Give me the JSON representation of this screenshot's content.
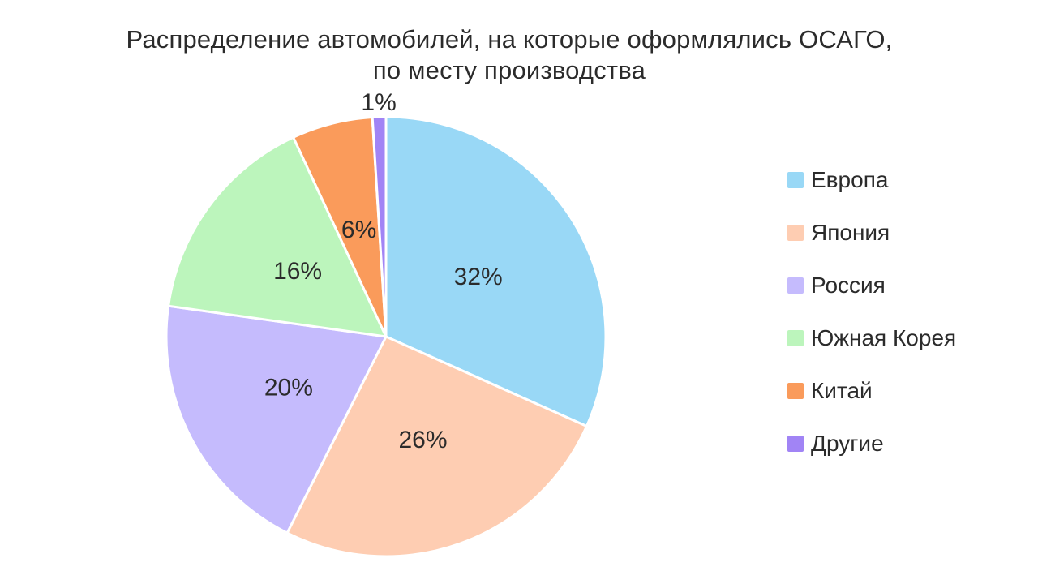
{
  "title": {
    "line1": "Распределение автомобилей, на которые оформлялись ОСАГО,",
    "line2": "по месту производства"
  },
  "chart_data": {
    "type": "pie",
    "title": "Распределение автомобилей, на которые оформлялись ОСАГО, по месту производства",
    "legend_position": "right",
    "slices": [
      {
        "id": "europa",
        "label": "Европа",
        "value": 32,
        "pct_label": "32%",
        "color": "#99d8f6",
        "label_position": "inside"
      },
      {
        "id": "yaponiya",
        "label": "Япония",
        "value": 26,
        "pct_label": "26%",
        "color": "#fecdb2",
        "label_position": "inside"
      },
      {
        "id": "rossiya",
        "label": "Россия",
        "value": 20,
        "pct_label": "20%",
        "color": "#c5bbfd",
        "label_position": "inside"
      },
      {
        "id": "yuzhnaya-koreya",
        "label": "Южная Корея",
        "value": 16,
        "pct_label": "16%",
        "color": "#bcf5bc",
        "label_position": "inside"
      },
      {
        "id": "kitay",
        "label": "Китай",
        "value": 6,
        "pct_label": "6%",
        "color": "#fa9b5b",
        "label_position": "inside"
      },
      {
        "id": "drugie",
        "label": "Другие",
        "value": 1,
        "pct_label": "1%",
        "color": "#a184f5",
        "label_position": "outside"
      }
    ]
  },
  "colors": {
    "text": "#2b2b2b",
    "background": "#ffffff",
    "slice_border": "#ffffff"
  }
}
